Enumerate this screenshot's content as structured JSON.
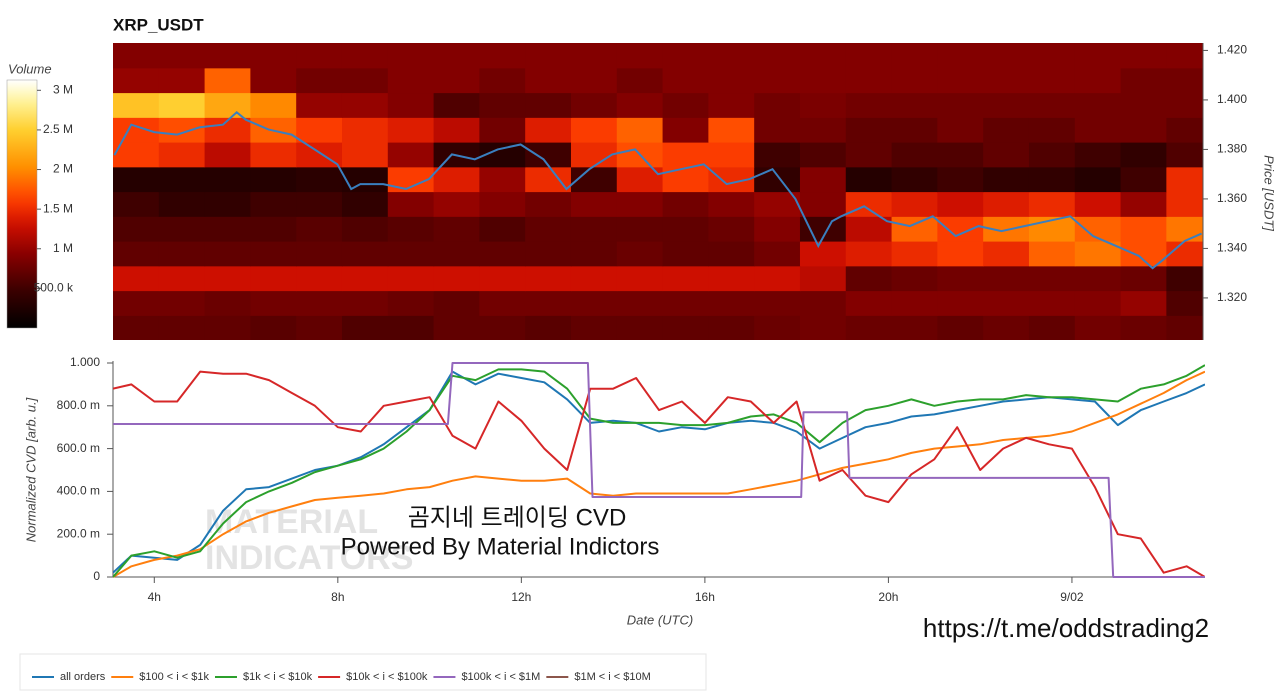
{
  "chart_data": [
    {
      "type": "heatmap",
      "title": "XRP_USDT",
      "ylabel": "Price [USDT]",
      "xlim": [
        3.1,
        26.9
      ],
      "ylim": [
        1.303,
        1.423
      ],
      "xbins": [
        3.1,
        4.1,
        5.1,
        6.1,
        7.1,
        8.1,
        9.1,
        10.1,
        11.1,
        12.1,
        13.1,
        14.1,
        15.1,
        16.1,
        17.1,
        18.1,
        19.1,
        20.1,
        21.1,
        22.1,
        23.1,
        24.1,
        25.1,
        26.1,
        26.9
      ],
      "ybins": [
        1.303,
        1.313,
        1.323,
        1.333,
        1.343,
        1.353,
        1.363,
        1.373,
        1.383,
        1.393,
        1.403,
        1.413,
        1.423
      ],
      "yticks": [
        {
          "value": 1.32,
          "label": "1.320"
        },
        {
          "value": 1.34,
          "label": "1.340"
        },
        {
          "value": 1.36,
          "label": "1.360"
        },
        {
          "value": 1.38,
          "label": "1.380"
        },
        {
          "value": 1.4,
          "label": "1.400"
        },
        {
          "value": 1.42,
          "label": "1.420"
        }
      ],
      "values": [
        [
          0.7,
          0.7,
          0.7,
          0.65,
          0.7,
          0.6,
          0.6,
          0.7,
          0.7,
          0.65,
          0.7,
          0.7,
          0.7,
          0.7,
          0.75,
          0.8,
          0.75,
          0.75,
          0.7,
          0.75,
          0.7,
          0.8,
          0.75,
          0.7
        ],
        [
          0.8,
          0.8,
          0.75,
          0.8,
          0.8,
          0.8,
          0.75,
          0.7,
          0.8,
          0.8,
          0.8,
          0.8,
          0.8,
          0.8,
          0.8,
          0.8,
          0.9,
          0.9,
          0.9,
          0.9,
          0.9,
          0.9,
          1.0,
          0.6
        ],
        [
          1.3,
          1.3,
          1.3,
          1.3,
          1.3,
          1.3,
          1.3,
          1.3,
          1.3,
          1.3,
          1.3,
          1.3,
          1.3,
          1.3,
          1.3,
          1.2,
          0.7,
          0.75,
          0.8,
          0.8,
          0.8,
          0.8,
          0.75,
          0.5
        ],
        [
          0.7,
          0.7,
          0.7,
          0.7,
          0.7,
          0.7,
          0.7,
          0.7,
          0.7,
          0.7,
          0.7,
          0.75,
          0.7,
          0.7,
          0.8,
          1.3,
          1.4,
          1.5,
          1.6,
          1.5,
          1.8,
          1.9,
          1.7,
          1.5
        ],
        [
          0.6,
          0.6,
          0.6,
          0.6,
          0.65,
          0.6,
          0.65,
          0.7,
          0.6,
          0.7,
          0.7,
          0.7,
          0.7,
          0.75,
          0.9,
          0.5,
          1.2,
          1.8,
          1.6,
          1.9,
          2.0,
          1.8,
          1.7,
          1.9
        ],
        [
          0.5,
          0.4,
          0.4,
          0.5,
          0.5,
          0.4,
          0.9,
          1.0,
          0.9,
          0.8,
          0.9,
          0.9,
          0.8,
          0.9,
          1.0,
          0.9,
          1.5,
          1.4,
          1.3,
          1.4,
          1.5,
          1.3,
          1.0,
          1.5
        ],
        [
          0.3,
          0.3,
          0.3,
          0.3,
          0.35,
          0.3,
          1.6,
          1.4,
          1.0,
          1.5,
          0.5,
          1.4,
          1.6,
          1.5,
          0.4,
          0.9,
          0.3,
          0.4,
          0.5,
          0.4,
          0.4,
          0.3,
          0.5,
          1.5
        ],
        [
          1.6,
          1.5,
          1.2,
          1.5,
          1.4,
          1.5,
          1.0,
          0.4,
          0.3,
          0.5,
          1.5,
          1.7,
          1.6,
          1.6,
          0.5,
          0.6,
          0.7,
          0.6,
          0.6,
          0.7,
          0.6,
          0.5,
          0.4,
          0.6
        ],
        [
          1.6,
          1.7,
          1.5,
          1.8,
          1.6,
          1.5,
          1.4,
          1.2,
          0.8,
          1.4,
          1.6,
          1.8,
          0.9,
          1.7,
          0.8,
          0.8,
          0.7,
          0.7,
          0.8,
          0.7,
          0.7,
          0.8,
          0.8,
          0.7
        ],
        [
          2.4,
          2.5,
          2.2,
          2.0,
          1.0,
          1.0,
          0.9,
          0.6,
          0.7,
          0.7,
          0.8,
          0.9,
          0.8,
          0.9,
          0.8,
          0.85,
          0.8,
          0.8,
          0.8,
          0.8,
          0.8,
          0.8,
          0.8,
          0.8
        ],
        [
          1.0,
          1.0,
          1.8,
          0.9,
          0.8,
          0.8,
          0.9,
          0.9,
          0.8,
          0.9,
          0.9,
          0.8,
          0.9,
          0.9,
          0.9,
          0.9,
          0.9,
          0.9,
          0.9,
          0.9,
          0.9,
          0.9,
          0.8,
          0.8
        ],
        [
          0.9,
          0.9,
          0.9,
          0.9,
          0.9,
          0.9,
          0.9,
          0.9,
          0.9,
          0.9,
          0.9,
          0.9,
          0.9,
          0.9,
          0.9,
          0.9,
          0.9,
          0.9,
          0.9,
          0.9,
          0.9,
          0.9,
          0.9,
          0.9
        ]
      ],
      "colorbar": {
        "title": "Volume",
        "lim": [
          0,
          3.13
        ],
        "ticks": [
          {
            "value": 0.5,
            "label": "500.0 k"
          },
          {
            "value": 1,
            "label": "1 M"
          },
          {
            "value": 1.5,
            "label": "1.5 M"
          },
          {
            "value": 2,
            "label": "2 M"
          },
          {
            "value": 2.5,
            "label": "2.5 M"
          },
          {
            "value": 3,
            "label": "3 M"
          }
        ]
      },
      "price_color": "#3a7fbf",
      "price_x": [
        3.13,
        3.5,
        4,
        4.5,
        5,
        5.5,
        5.8,
        6,
        6.5,
        7,
        7.5,
        8,
        8.3,
        8.5,
        9,
        9.5,
        10,
        10.5,
        11,
        11.5,
        12,
        12.5,
        13,
        13.5,
        14,
        14.5,
        15,
        15.5,
        16,
        16.5,
        17,
        17.5,
        18,
        18.5,
        18.8,
        19,
        19.5,
        20,
        20.5,
        21,
        21.5,
        22,
        22.5,
        23,
        23.5,
        24,
        24.5,
        25,
        25.5,
        25.8,
        26,
        26.5,
        26.87
      ],
      "price": [
        1.3777,
        1.39,
        1.387,
        1.386,
        1.389,
        1.39,
        1.395,
        1.392,
        1.388,
        1.386,
        1.38,
        1.374,
        1.364,
        1.366,
        1.366,
        1.364,
        1.368,
        1.378,
        1.376,
        1.38,
        1.382,
        1.376,
        1.364,
        1.372,
        1.378,
        1.38,
        1.37,
        1.372,
        1.374,
        1.366,
        1.368,
        1.372,
        1.36,
        1.341,
        1.351,
        1.353,
        1.357,
        1.351,
        1.349,
        1.353,
        1.345,
        1.349,
        1.347,
        1.349,
        1.351,
        1.353,
        1.345,
        1.341,
        1.337,
        1.332,
        1.335,
        1.343,
        1.346
      ]
    },
    {
      "type": "line",
      "xlabel": "Date (UTC)",
      "ylabel": "Normalized CVD [arb. u.]",
      "xlim": [
        3.1,
        26.9
      ],
      "ylim": [
        0,
        1
      ],
      "xticks": [
        {
          "value": 4,
          "label": "4h"
        },
        {
          "value": 8,
          "label": "8h"
        },
        {
          "value": 12,
          "label": "12h"
        },
        {
          "value": 16,
          "label": "16h"
        },
        {
          "value": 20,
          "label": "20h"
        },
        {
          "value": 24,
          "label": "9/02"
        }
      ],
      "yticks": [
        0,
        {
          "value": 0.2,
          "label": "200.0 m"
        },
        {
          "value": 0.4,
          "label": "400.0 m"
        },
        {
          "value": 0.6,
          "label": "600.0 m"
        },
        {
          "value": 0.8,
          "label": "800.0 m"
        },
        {
          "value": 1,
          "label": "1.000"
        }
      ],
      "x": [
        3.1,
        3.5,
        4,
        4.5,
        5,
        5.5,
        6,
        6.5,
        7,
        7.5,
        8,
        8.5,
        9,
        9.5,
        10,
        10.5,
        11,
        11.5,
        12,
        12.5,
        13,
        13.5,
        14,
        14.5,
        15,
        15.5,
        16,
        16.5,
        17,
        17.5,
        18,
        18.5,
        19,
        19.5,
        20,
        20.5,
        21,
        21.5,
        22,
        22.5,
        23,
        23.5,
        24,
        24.5,
        25,
        25.5,
        26,
        26.5,
        26.9
      ],
      "series": [
        {
          "name": "all orders",
          "color": "#1f77b4",
          "values": [
            0.02,
            0.1,
            0.09,
            0.08,
            0.15,
            0.31,
            0.41,
            0.42,
            0.46,
            0.5,
            0.52,
            0.56,
            0.62,
            0.7,
            0.78,
            0.96,
            0.9,
            0.95,
            0.93,
            0.91,
            0.83,
            0.72,
            0.73,
            0.72,
            0.68,
            0.7,
            0.69,
            0.72,
            0.73,
            0.72,
            0.68,
            0.6,
            0.65,
            0.7,
            0.72,
            0.75,
            0.76,
            0.78,
            0.8,
            0.82,
            0.83,
            0.84,
            0.83,
            0.82,
            0.71,
            0.78,
            0.82,
            0.86,
            0.9
          ]
        },
        {
          "name": "$100 < i < $1k",
          "color": "#ff7f0e",
          "values": [
            0.0,
            0.05,
            0.08,
            0.1,
            0.13,
            0.2,
            0.26,
            0.3,
            0.33,
            0.36,
            0.37,
            0.38,
            0.39,
            0.41,
            0.42,
            0.45,
            0.47,
            0.46,
            0.45,
            0.45,
            0.46,
            0.39,
            0.38,
            0.39,
            0.39,
            0.39,
            0.39,
            0.39,
            0.41,
            0.43,
            0.45,
            0.48,
            0.51,
            0.53,
            0.55,
            0.58,
            0.6,
            0.61,
            0.62,
            0.64,
            0.65,
            0.66,
            0.68,
            0.72,
            0.76,
            0.81,
            0.86,
            0.92,
            0.96
          ]
        },
        {
          "name": "$1k < i < $10k",
          "color": "#2ca02c",
          "values": [
            0.0,
            0.1,
            0.12,
            0.09,
            0.12,
            0.25,
            0.35,
            0.4,
            0.44,
            0.49,
            0.52,
            0.55,
            0.6,
            0.68,
            0.78,
            0.94,
            0.92,
            0.97,
            0.97,
            0.96,
            0.88,
            0.74,
            0.72,
            0.72,
            0.72,
            0.71,
            0.71,
            0.72,
            0.75,
            0.76,
            0.72,
            0.63,
            0.72,
            0.78,
            0.8,
            0.83,
            0.8,
            0.82,
            0.83,
            0.83,
            0.85,
            0.84,
            0.84,
            0.83,
            0.82,
            0.88,
            0.9,
            0.94,
            0.99
          ]
        },
        {
          "name": "$10k < i < $100k",
          "color": "#d62728",
          "values": [
            0.88,
            0.9,
            0.82,
            0.82,
            0.96,
            0.95,
            0.95,
            0.92,
            0.86,
            0.8,
            0.7,
            0.68,
            0.8,
            0.82,
            0.84,
            0.66,
            0.6,
            0.82,
            0.73,
            0.6,
            0.5,
            0.88,
            0.88,
            0.93,
            0.78,
            0.82,
            0.72,
            0.84,
            0.82,
            0.72,
            0.82,
            0.45,
            0.5,
            0.38,
            0.35,
            0.48,
            0.55,
            0.7,
            0.5,
            0.6,
            0.65,
            0.62,
            0.6,
            0.42,
            0.2,
            0.18,
            0.02,
            0.05,
            0.0
          ]
        },
        {
          "name": "$100k < i < $1M",
          "color": "#9467bd",
          "x": [
            3.1,
            10.4,
            10.5,
            13.45,
            13.55,
            18.1,
            18.15,
            19.1,
            19.15,
            24.8,
            24.9,
            26.9
          ],
          "values": [
            0.715,
            0.715,
            1,
            1,
            0.374,
            0.374,
            0.77,
            0.77,
            0.463,
            0.463,
            0,
            0
          ]
        },
        {
          "name": "$1M < i < $10M",
          "color": "#8c564b",
          "x": [],
          "values": []
        }
      ],
      "annotations": [
        "곰지네 트레이딩 CVD",
        "Powered By Material Indictors",
        "https://t.me/oddstrading2"
      ],
      "watermark": [
        "MATERIAL",
        "INDICATORS"
      ]
    }
  ]
}
